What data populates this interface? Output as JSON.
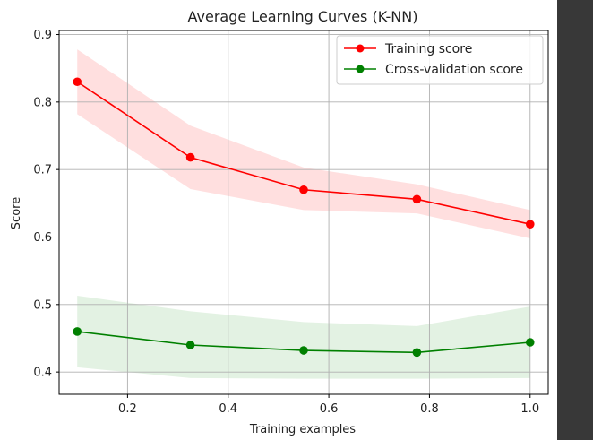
{
  "chart_data": {
    "type": "line",
    "title": "Average Learning Curves (K-NN)",
    "xlabel": "Training examples",
    "ylabel": "Score",
    "xlim": [
      0.064,
      1.036
    ],
    "ylim": [
      0.367,
      0.906
    ],
    "xticks": [
      0.2,
      0.4,
      0.6,
      0.8,
      1.0
    ],
    "xtick_labels": [
      "0.2",
      "0.4",
      "0.6",
      "0.8",
      "1.0"
    ],
    "yticks": [
      0.4,
      0.5,
      0.6,
      0.7,
      0.8,
      0.9
    ],
    "ytick_labels": [
      "0.4",
      "0.5",
      "0.6",
      "0.7",
      "0.8",
      "0.9"
    ],
    "grid": true,
    "legend_position": "top-right",
    "x": [
      0.1,
      0.325,
      0.55,
      0.775,
      1.0
    ],
    "series": [
      {
        "name": "Training score",
        "color": "#ff0000",
        "band_color": "#ffaaaa",
        "values": [
          0.83,
          0.718,
          0.67,
          0.656,
          0.619
        ],
        "upper": [
          0.878,
          0.765,
          0.703,
          0.678,
          0.64
        ],
        "lower": [
          0.782,
          0.671,
          0.64,
          0.635,
          0.598
        ]
      },
      {
        "name": "Cross-validation score",
        "color": "#008000",
        "band_color": "#a8d8a8",
        "values": [
          0.46,
          0.44,
          0.432,
          0.429,
          0.444
        ],
        "upper": [
          0.513,
          0.49,
          0.474,
          0.468,
          0.497
        ],
        "lower": [
          0.407,
          0.391,
          0.39,
          0.39,
          0.391
        ]
      }
    ]
  }
}
